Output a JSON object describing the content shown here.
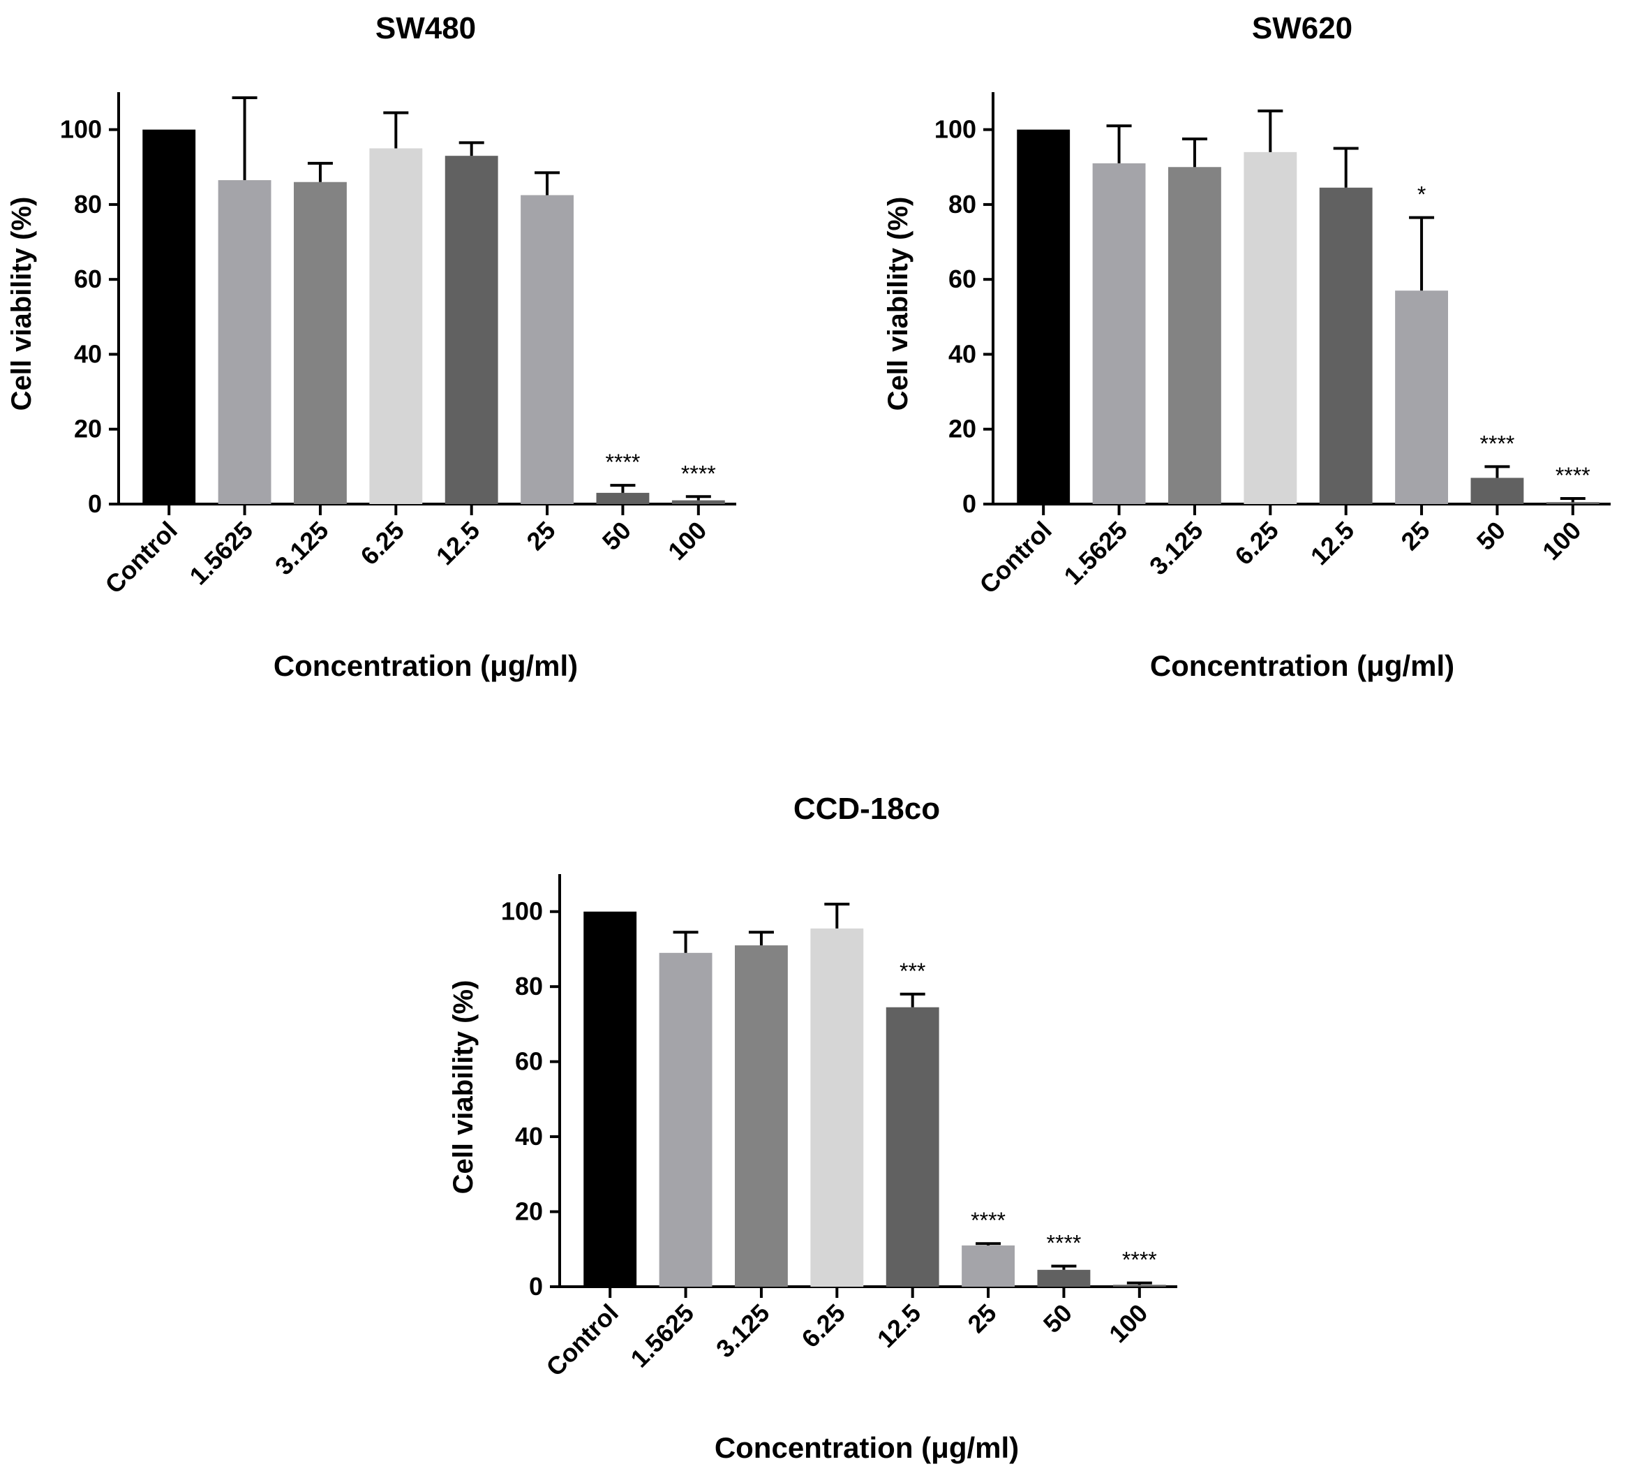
{
  "figure": {
    "background": "#ffffff",
    "charts": [
      {
        "id": "sw480",
        "title": "SW480",
        "xlabel": "Concentration  (μg/ml)",
        "ylabel": "Cell viability (%)"
      },
      {
        "id": "sw620",
        "title": "SW620",
        "xlabel": "Concentration  (μg/ml)",
        "ylabel": "Cell viability (%)"
      },
      {
        "id": "ccd18co",
        "title": "CCD-18co",
        "xlabel": "Concentration  (μg/ml)",
        "ylabel": "Cell viability (%)"
      }
    ]
  },
  "chart_data": [
    {
      "type": "bar",
      "title": "SW480",
      "xlabel": "Concentration  (μg/ml)",
      "ylabel": "Cell viability (%)",
      "ylim": [
        0,
        110
      ],
      "yticks": [
        0,
        20,
        40,
        60,
        80,
        100
      ],
      "categories": [
        "Control",
        "1.5625",
        "3.125",
        "6.25",
        "12.5",
        "25",
        "50",
        "100"
      ],
      "values": [
        100,
        86.5,
        86,
        95,
        93,
        82.5,
        3,
        1
      ],
      "error_upper": [
        100,
        108.5,
        91,
        104.5,
        96.5,
        88.5,
        5,
        2
      ],
      "significance": [
        "",
        "",
        "",
        "",
        "",
        "",
        "****",
        "****"
      ],
      "colors": [
        "#000000",
        "#a4a4a9",
        "#838383",
        "#d6d6d6",
        "#616161",
        "#a4a4a9",
        "#616161",
        "#616161"
      ]
    },
    {
      "type": "bar",
      "title": "SW620",
      "xlabel": "Concentration  (μg/ml)",
      "ylabel": "Cell viability (%)",
      "ylim": [
        0,
        110
      ],
      "yticks": [
        0,
        20,
        40,
        60,
        80,
        100
      ],
      "categories": [
        "Control",
        "1.5625",
        "3.125",
        "6.25",
        "12.5",
        "25",
        "50",
        "100"
      ],
      "values": [
        100,
        91,
        90,
        94,
        84.5,
        57,
        7,
        0.5
      ],
      "error_upper": [
        100,
        101,
        97.5,
        105,
        95,
        76.5,
        10,
        1.5
      ],
      "significance": [
        "",
        "",
        "",
        "",
        "",
        "*",
        "****",
        "****"
      ],
      "colors": [
        "#000000",
        "#a4a4a9",
        "#838383",
        "#d6d6d6",
        "#616161",
        "#a4a4a9",
        "#616161",
        "#616161"
      ]
    },
    {
      "type": "bar",
      "title": "CCD-18co",
      "xlabel": "Concentration  (μg/ml)",
      "ylabel": "Cell viability (%)",
      "ylim": [
        0,
        110
      ],
      "yticks": [
        0,
        20,
        40,
        60,
        80,
        100
      ],
      "categories": [
        "Control",
        "1.5625",
        "3.125",
        "6.25",
        "12.5",
        "25",
        "50",
        "100"
      ],
      "values": [
        100,
        89,
        91,
        95.5,
        74.5,
        11,
        4.5,
        0.5
      ],
      "error_upper": [
        100,
        94.5,
        94.5,
        102,
        78,
        11.5,
        5.5,
        1
      ],
      "significance": [
        "",
        "",
        "",
        "",
        "***",
        "****",
        "****",
        "****"
      ],
      "colors": [
        "#000000",
        "#a4a4a9",
        "#838383",
        "#d6d6d6",
        "#616161",
        "#a4a4a9",
        "#616161",
        "#616161"
      ]
    }
  ]
}
